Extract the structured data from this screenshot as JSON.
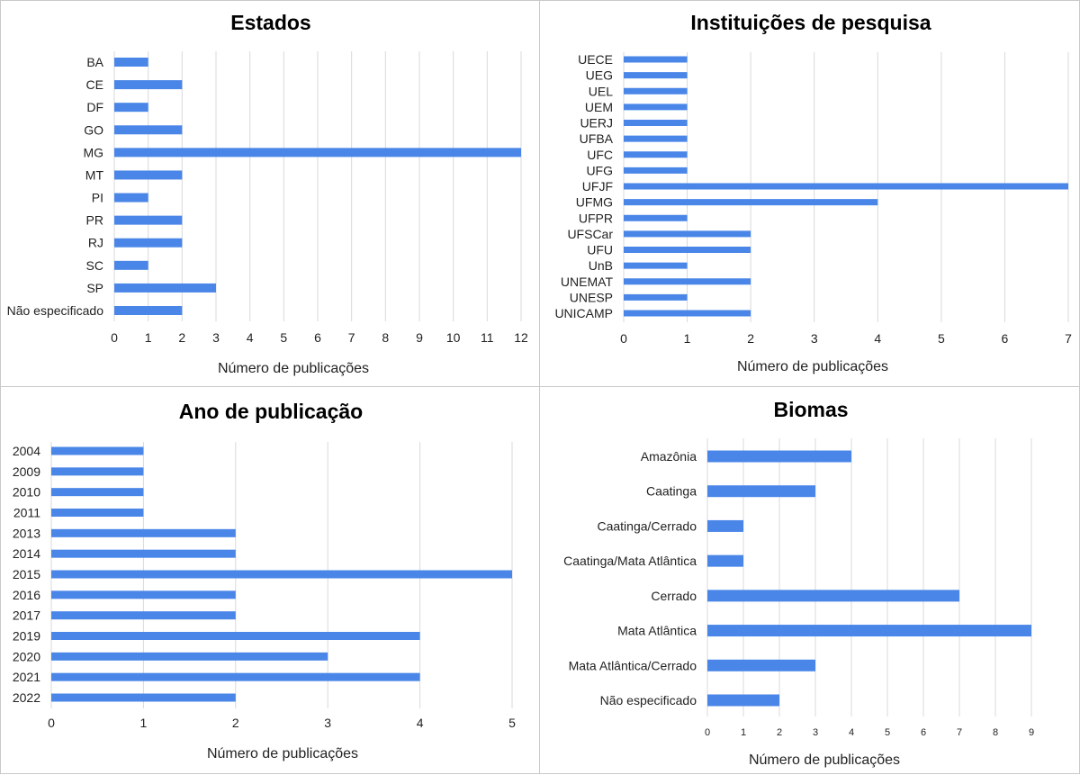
{
  "colors": {
    "bar": "#4a86e8",
    "grid": "#d9d9d9"
  },
  "chart_data": [
    {
      "type": "bar",
      "orientation": "horizontal",
      "title": "Estados",
      "xlabel": "Número de publicações",
      "categories": [
        "BA",
        "CE",
        "DF",
        "GO",
        "MG",
        "MT",
        "PI",
        "PR",
        "RJ",
        "SC",
        "SP",
        "Não especificado"
      ],
      "values": [
        1,
        2,
        1,
        2,
        12,
        2,
        1,
        2,
        2,
        1,
        3,
        2
      ],
      "xticks": [
        0,
        1,
        2,
        3,
        4,
        5,
        6,
        7,
        8,
        9,
        10,
        11,
        12
      ],
      "xlim": [
        0,
        12
      ],
      "grid": true
    },
    {
      "type": "bar",
      "orientation": "horizontal",
      "title": "Instituições de pesquisa",
      "xlabel": "Número de publicações",
      "categories": [
        "UECE",
        "UEG",
        "UEL",
        "UEM",
        "UERJ",
        "UFBA",
        "UFC",
        "UFG",
        "UFJF",
        "UFMG",
        "UFPR",
        "UFSCar",
        "UFU",
        "UnB",
        "UNEMAT",
        "UNESP",
        "UNICAMP"
      ],
      "values": [
        1,
        1,
        1,
        1,
        1,
        1,
        1,
        1,
        7,
        4,
        1,
        2,
        2,
        1,
        2,
        1,
        2
      ],
      "xticks": [
        0,
        1,
        2,
        3,
        4,
        5,
        6,
        7
      ],
      "xlim": [
        0,
        7
      ],
      "grid": true
    },
    {
      "type": "bar",
      "orientation": "horizontal",
      "title": "Ano de publicação",
      "xlabel": "Número de publicações",
      "categories": [
        "2004",
        "2009",
        "2010",
        "2011",
        "2013",
        "2014",
        "2015",
        "2016",
        "2017",
        "2019",
        "2020",
        "2021",
        "2022"
      ],
      "values": [
        1,
        1,
        1,
        1,
        2,
        2,
        5,
        2,
        2,
        4,
        3,
        4,
        2
      ],
      "xticks": [
        0,
        1,
        2,
        3,
        4,
        5
      ],
      "xlim": [
        0,
        5
      ],
      "grid": true
    },
    {
      "type": "bar",
      "orientation": "horizontal",
      "title": "Biomas",
      "xlabel": "Número de publicações",
      "categories": [
        "Amazônia",
        "Caatinga",
        "Caatinga/Cerrado",
        "Caatinga/Mata Atlântica",
        "Cerrado",
        "Mata Atlântica",
        "Mata Atlântica/Cerrado",
        "Não especificado"
      ],
      "values": [
        4,
        3,
        1,
        1,
        7,
        9,
        3,
        2
      ],
      "xticks": [
        0,
        1,
        2,
        3,
        4,
        5,
        6,
        7,
        8,
        9
      ],
      "xlim": [
        0,
        9
      ],
      "grid": true
    }
  ]
}
